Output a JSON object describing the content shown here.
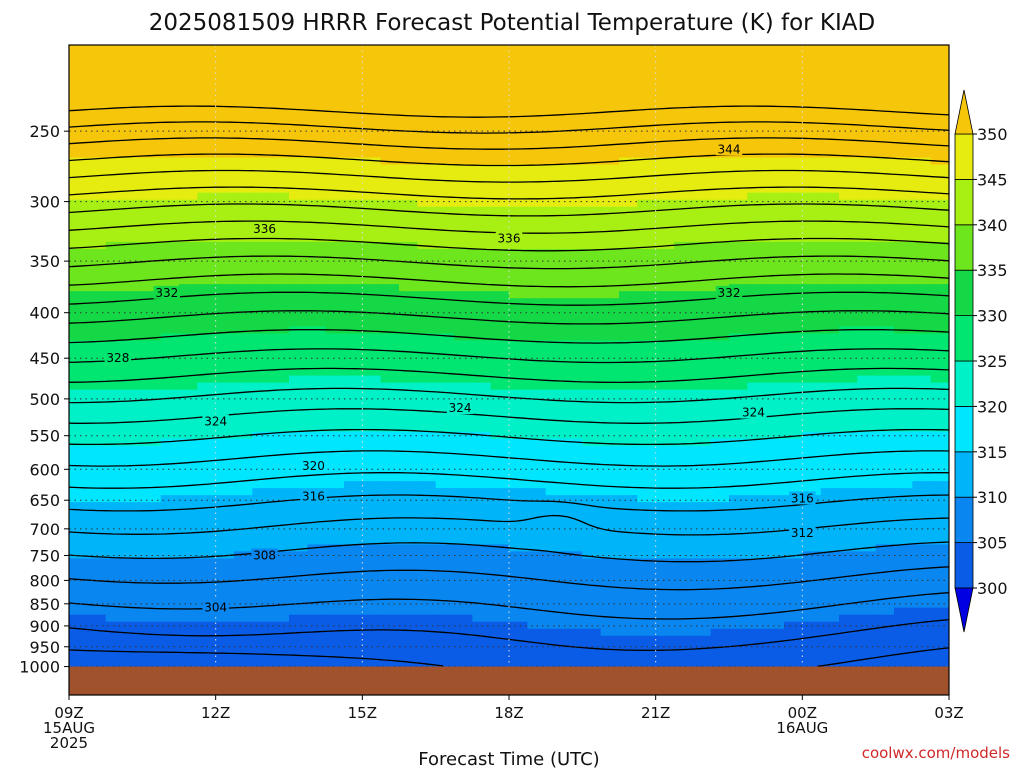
{
  "chart_data": {
    "type": "heatmap",
    "title": "2025081509 HRRR Forecast Potential Temperature (K) for KIAD",
    "xlabel": "Forecast Time (UTC)",
    "ylabel": "",
    "credit": "coolwx.com/models",
    "x_ticks": [
      {
        "hour": 0,
        "lines": [
          "09Z",
          "15AUG",
          "2025"
        ]
      },
      {
        "hour": 3,
        "lines": [
          "12Z"
        ]
      },
      {
        "hour": 6,
        "lines": [
          "15Z"
        ]
      },
      {
        "hour": 9,
        "lines": [
          "18Z"
        ]
      },
      {
        "hour": 12,
        "lines": [
          "21Z"
        ]
      },
      {
        "hour": 15,
        "lines": [
          "00Z",
          "16AUG"
        ]
      },
      {
        "hour": 18,
        "lines": [
          "03Z"
        ]
      }
    ],
    "xlim_hours": [
      0,
      18
    ],
    "y_axis": "pressure (hPa), log scale, inverted",
    "y_ticks": [
      250,
      300,
      350,
      400,
      450,
      500,
      550,
      600,
      650,
      700,
      750,
      800,
      850,
      900,
      950,
      1000
    ],
    "ylim": [
      1030,
      200
    ],
    "ground_level_hPa": 1000,
    "colorbar": {
      "levels": [
        300,
        305,
        310,
        315,
        320,
        325,
        330,
        335,
        340,
        345,
        350
      ],
      "colors": [
        "#0000e0",
        "#0a5ce6",
        "#0a86f0",
        "#00b4fa",
        "#00e6ff",
        "#00f0c8",
        "#00e670",
        "#14d846",
        "#6ee61e",
        "#a8f014",
        "#e6ec10",
        "#f5c60a"
      ],
      "extend": "both"
    },
    "contour_labels": [
      {
        "value": 344,
        "hour": 13.5,
        "pressure": 262
      },
      {
        "value": 336,
        "hour": 4.0,
        "pressure": 322
      },
      {
        "value": 336,
        "hour": 9.0,
        "pressure": 330
      },
      {
        "value": 332,
        "hour": 2.0,
        "pressure": 380
      },
      {
        "value": 332,
        "hour": 13.5,
        "pressure": 380
      },
      {
        "value": 328,
        "hour": 1.0,
        "pressure": 450
      },
      {
        "value": 324,
        "hour": 3.0,
        "pressure": 530
      },
      {
        "value": 324,
        "hour": 8.0,
        "pressure": 512
      },
      {
        "value": 324,
        "hour": 14.0,
        "pressure": 518
      },
      {
        "value": 320,
        "hour": 5.0,
        "pressure": 595
      },
      {
        "value": 316,
        "hour": 5.0,
        "pressure": 644
      },
      {
        "value": 316,
        "hour": 15.0,
        "pressure": 647
      },
      {
        "value": 312,
        "hour": 15.0,
        "pressure": 708
      },
      {
        "value": 308,
        "hour": 4.0,
        "pressure": 750
      },
      {
        "value": 304,
        "hour": 3.0,
        "pressure": 858
      }
    ]
  }
}
